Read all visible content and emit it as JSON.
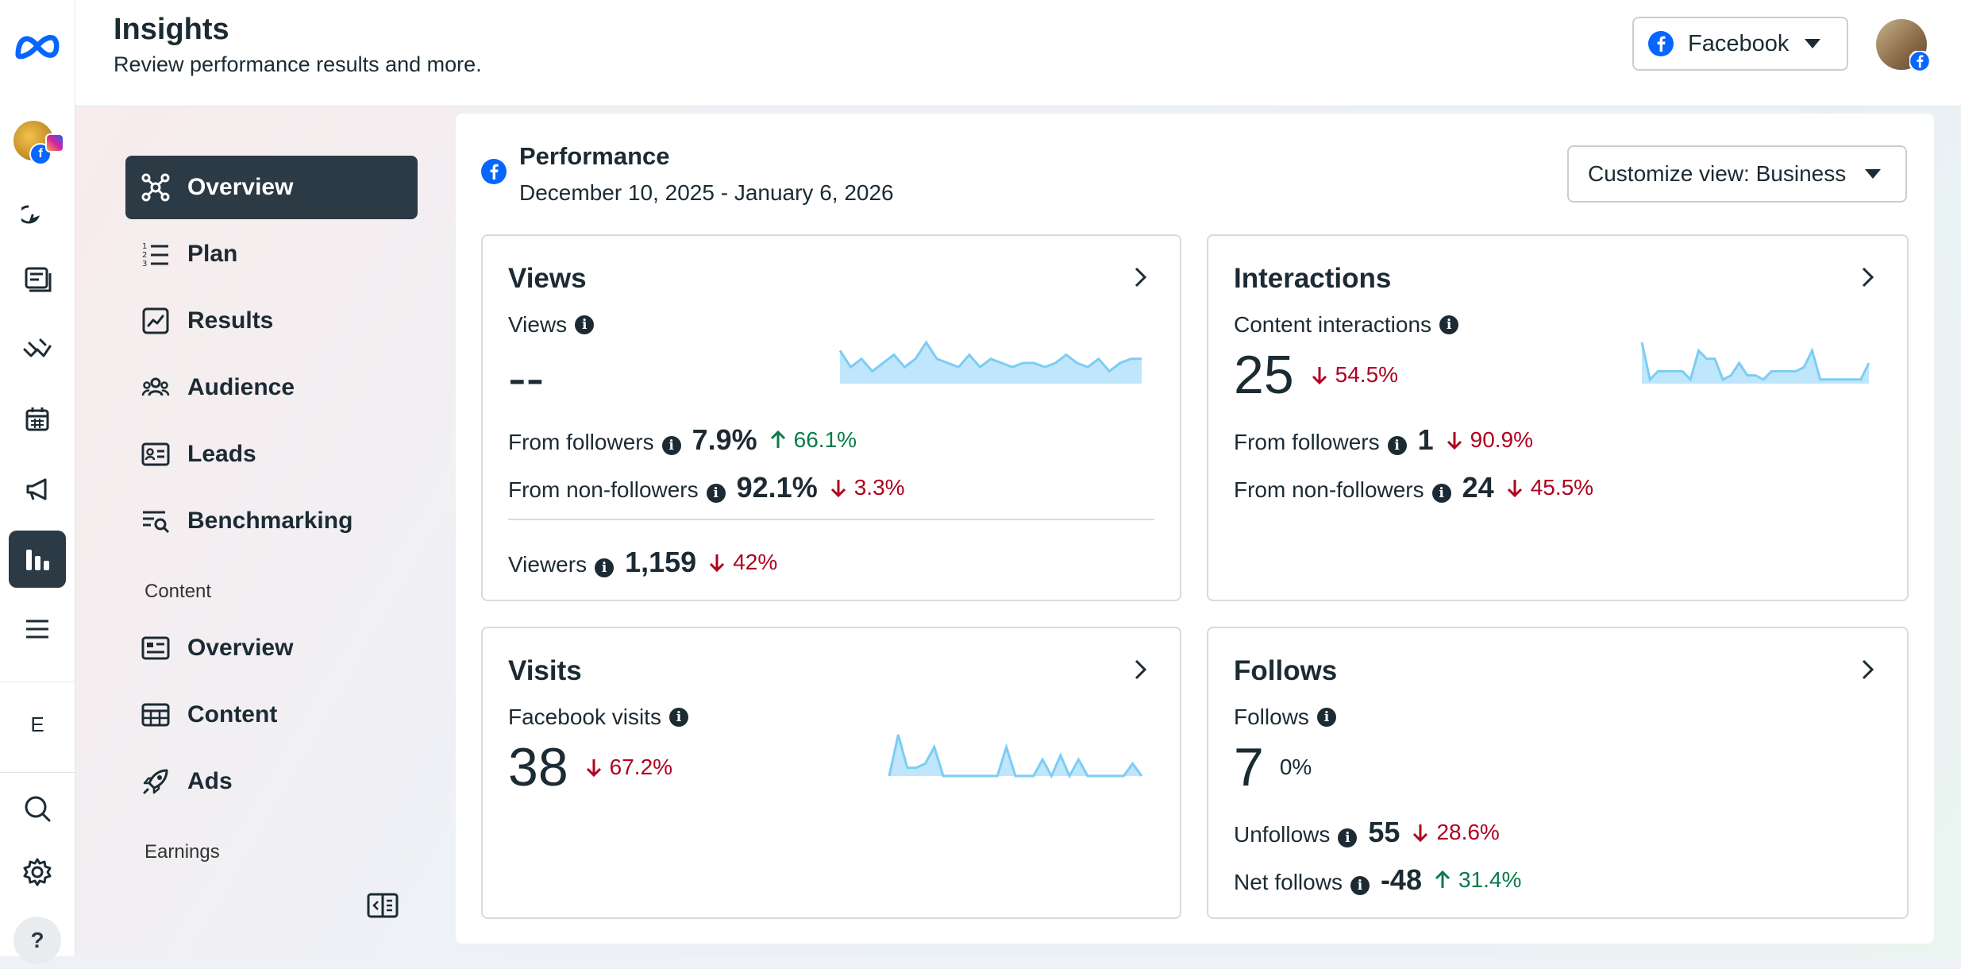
{
  "header": {
    "title": "Insights",
    "subtitle": "Review performance results and more.",
    "platform_selector": "Facebook"
  },
  "rail": {
    "account_initial": "E",
    "help": "?"
  },
  "nav": {
    "items": [
      {
        "label": "Overview",
        "icon": "overview-icon",
        "active": true
      },
      {
        "label": "Plan",
        "icon": "plan-icon"
      },
      {
        "label": "Results",
        "icon": "results-icon"
      },
      {
        "label": "Audience",
        "icon": "audience-icon"
      },
      {
        "label": "Leads",
        "icon": "leads-icon"
      },
      {
        "label": "Benchmarking",
        "icon": "benchmarking-icon"
      }
    ],
    "content_section": "Content",
    "content_items": [
      {
        "label": "Overview",
        "icon": "content-overview-icon"
      },
      {
        "label": "Content",
        "icon": "table-icon"
      },
      {
        "label": "Ads",
        "icon": "rocket-icon"
      }
    ],
    "earnings_section": "Earnings"
  },
  "performance": {
    "title": "Performance",
    "date_range": "December 10, 2025 - January 6, 2026",
    "customize": "Customize view: Business"
  },
  "cards": {
    "views": {
      "title": "Views",
      "metric_label": "Views",
      "metric_value": "--",
      "followers_label": "From followers",
      "followers_value": "7.9%",
      "followers_delta": "66.1%",
      "nonfollowers_label": "From non-followers",
      "nonfollowers_value": "92.1%",
      "nonfollowers_delta": "3.3%",
      "viewers_label": "Viewers",
      "viewers_value": "1,159",
      "viewers_delta": "42%",
      "spark": [
        8,
        4,
        6,
        3,
        5,
        7,
        4,
        6,
        10,
        6,
        5,
        4,
        7,
        4,
        6,
        5,
        4,
        5,
        5,
        4,
        5,
        7,
        5,
        4,
        6,
        3,
        5,
        6,
        6
      ]
    },
    "interactions": {
      "title": "Interactions",
      "metric_label": "Content interactions",
      "metric_value": "25",
      "metric_delta": "54.5%",
      "followers_label": "From followers",
      "followers_value": "1",
      "followers_delta": "90.9%",
      "nonfollowers_label": "From non-followers",
      "nonfollowers_value": "24",
      "nonfollowers_delta": "45.5%",
      "spark": [
        10,
        1,
        3,
        3,
        3,
        3,
        1,
        8,
        6,
        6,
        1,
        2,
        5,
        2,
        2,
        1,
        3,
        3,
        3,
        3,
        4,
        8,
        1,
        1,
        1,
        1,
        1,
        1,
        5
      ]
    },
    "visits": {
      "title": "Visits",
      "metric_label": "Facebook visits",
      "metric_value": "38",
      "metric_delta": "67.2%",
      "spark": [
        0,
        10,
        2,
        2,
        3,
        7,
        0,
        0,
        0,
        0,
        0,
        0,
        0,
        7,
        0,
        0,
        0,
        4,
        0,
        5,
        0,
        4,
        0,
        0,
        0,
        0,
        0,
        3,
        0
      ]
    },
    "follows": {
      "title": "Follows",
      "metric_label": "Follows",
      "metric_value": "7",
      "metric_delta": "0%",
      "unfollows_label": "Unfollows",
      "unfollows_value": "55",
      "unfollows_delta": "28.6%",
      "net_label": "Net follows",
      "net_value": "-48",
      "net_delta": "31.4%"
    }
  },
  "colors": {
    "accent_dark": "#2b3a44",
    "facebook_blue": "#0866ff",
    "negative": "#b00020",
    "positive": "#0a7a4a",
    "spark_fill": "#bfe6fb",
    "spark_line": "#7ccdf4"
  }
}
